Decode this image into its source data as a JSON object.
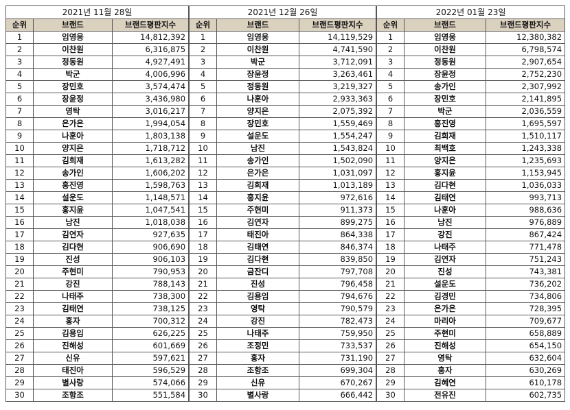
{
  "headers": {
    "rank": "순위",
    "brand": "브랜드",
    "index": "브랜드평판지수"
  },
  "tables": [
    {
      "date": "2021년 11월 28일",
      "rows": [
        [
          "1",
          "임영웅",
          "14,812,392"
        ],
        [
          "2",
          "이찬원",
          "6,316,875"
        ],
        [
          "3",
          "정동원",
          "4,927,491"
        ],
        [
          "4",
          "박군",
          "4,006,996"
        ],
        [
          "5",
          "장민호",
          "3,574,474"
        ],
        [
          "6",
          "장윤정",
          "3,436,980"
        ],
        [
          "7",
          "영탁",
          "3,016,217"
        ],
        [
          "8",
          "은가은",
          "1,994,054"
        ],
        [
          "9",
          "나훈아",
          "1,803,138"
        ],
        [
          "10",
          "양지은",
          "1,718,712"
        ],
        [
          "11",
          "김희재",
          "1,613,282"
        ],
        [
          "12",
          "송가인",
          "1,606,202"
        ],
        [
          "13",
          "홍진영",
          "1,598,763"
        ],
        [
          "14",
          "설운도",
          "1,148,571"
        ],
        [
          "15",
          "홍지윤",
          "1,047,541"
        ],
        [
          "16",
          "남진",
          "1,018,038"
        ],
        [
          "17",
          "김연자",
          "927,635"
        ],
        [
          "18",
          "김다현",
          "906,690"
        ],
        [
          "19",
          "진성",
          "906,103"
        ],
        [
          "20",
          "주현미",
          "790,953"
        ],
        [
          "21",
          "강진",
          "788,143"
        ],
        [
          "22",
          "나태주",
          "738,300"
        ],
        [
          "23",
          "김태연",
          "738,125"
        ],
        [
          "24",
          "홍자",
          "700,312"
        ],
        [
          "25",
          "김용임",
          "626,225"
        ],
        [
          "26",
          "진해성",
          "601,669"
        ],
        [
          "27",
          "신유",
          "597,621"
        ],
        [
          "28",
          "태진아",
          "596,529"
        ],
        [
          "29",
          "별사랑",
          "574,066"
        ],
        [
          "30",
          "조항조",
          "551,584"
        ]
      ]
    },
    {
      "date": "2021년 12월 26일",
      "rows": [
        [
          "1",
          "임영웅",
          "14,119,529"
        ],
        [
          "2",
          "이찬원",
          "4,741,590"
        ],
        [
          "3",
          "박군",
          "3,712,091"
        ],
        [
          "4",
          "장윤정",
          "3,263,461"
        ],
        [
          "5",
          "정동원",
          "3,219,327"
        ],
        [
          "6",
          "나훈아",
          "2,933,363"
        ],
        [
          "7",
          "양지은",
          "2,075,392"
        ],
        [
          "8",
          "장민호",
          "1,559,469"
        ],
        [
          "9",
          "설운도",
          "1,554,247"
        ],
        [
          "10",
          "남진",
          "1,543,824"
        ],
        [
          "11",
          "송가인",
          "1,502,090"
        ],
        [
          "12",
          "은가은",
          "1,031,097"
        ],
        [
          "13",
          "김희재",
          "1,013,189"
        ],
        [
          "14",
          "홍지윤",
          "972,616"
        ],
        [
          "15",
          "주현미",
          "911,373"
        ],
        [
          "16",
          "김연자",
          "899,275"
        ],
        [
          "17",
          "태진아",
          "864,338"
        ],
        [
          "18",
          "김태연",
          "846,374"
        ],
        [
          "19",
          "김다현",
          "839,850"
        ],
        [
          "20",
          "금잔디",
          "797,708"
        ],
        [
          "21",
          "진성",
          "796,458"
        ],
        [
          "22",
          "김용임",
          "794,676"
        ],
        [
          "23",
          "영탁",
          "790,579"
        ],
        [
          "24",
          "강진",
          "782,473"
        ],
        [
          "25",
          "나태주",
          "759,950"
        ],
        [
          "26",
          "조정민",
          "733,537"
        ],
        [
          "27",
          "홍자",
          "731,190"
        ],
        [
          "28",
          "조항조",
          "699,304"
        ],
        [
          "29",
          "신유",
          "670,267"
        ],
        [
          "30",
          "별사랑",
          "666,442"
        ]
      ]
    },
    {
      "date": "2022년 01월 23일",
      "rows": [
        [
          "1",
          "임영웅",
          "12,380,382"
        ],
        [
          "2",
          "이찬원",
          "6,798,574"
        ],
        [
          "3",
          "정동원",
          "2,907,654"
        ],
        [
          "4",
          "장윤정",
          "2,752,230"
        ],
        [
          "5",
          "송가인",
          "2,307,992"
        ],
        [
          "6",
          "장민호",
          "2,141,895"
        ],
        [
          "7",
          "박군",
          "2,036,559"
        ],
        [
          "8",
          "홍진영",
          "1,695,597"
        ],
        [
          "9",
          "김희재",
          "1,510,117"
        ],
        [
          "10",
          "최백호",
          "1,243,338"
        ],
        [
          "11",
          "양지은",
          "1,235,693"
        ],
        [
          "12",
          "홍지윤",
          "1,153,945"
        ],
        [
          "13",
          "김다현",
          "1,036,033"
        ],
        [
          "14",
          "김태연",
          "993,713"
        ],
        [
          "15",
          "나훈아",
          "988,636"
        ],
        [
          "16",
          "남진",
          "976,889"
        ],
        [
          "17",
          "강진",
          "867,424"
        ],
        [
          "18",
          "나태주",
          "771,478"
        ],
        [
          "19",
          "김연자",
          "751,243"
        ],
        [
          "20",
          "진성",
          "743,381"
        ],
        [
          "21",
          "설운도",
          "736,202"
        ],
        [
          "22",
          "김경민",
          "734,806"
        ],
        [
          "23",
          "은가은",
          "728,395"
        ],
        [
          "24",
          "마리아",
          "709,677"
        ],
        [
          "25",
          "주현미",
          "658,889"
        ],
        [
          "26",
          "진해성",
          "654,150"
        ],
        [
          "27",
          "영탁",
          "632,604"
        ],
        [
          "28",
          "홍자",
          "630,269"
        ],
        [
          "29",
          "김혜연",
          "610,178"
        ],
        [
          "30",
          "전유진",
          "602,735"
        ]
      ]
    }
  ]
}
